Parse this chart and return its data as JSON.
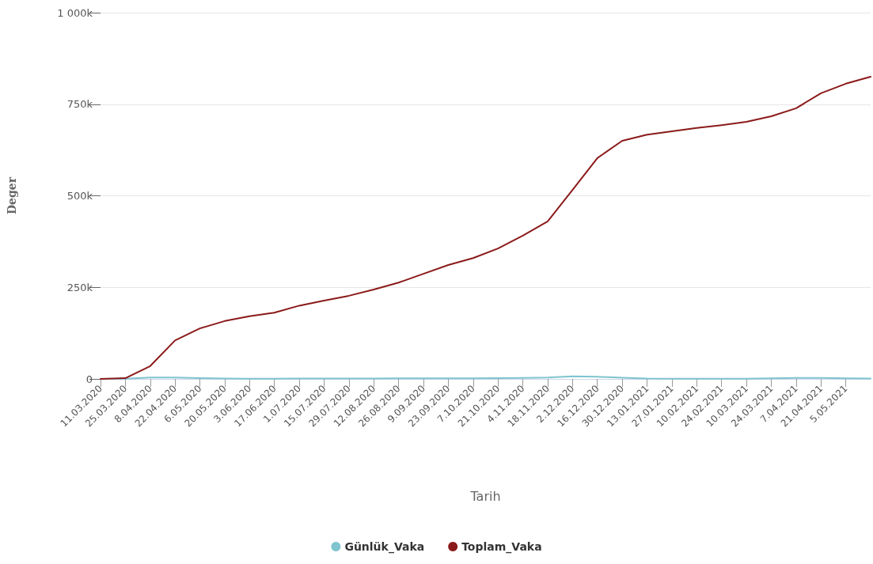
{
  "chart_data": {
    "type": "line",
    "xlabel": "Tarih",
    "ylabel": "Deger",
    "x": [
      "2020-03-11",
      "2020-03-25",
      "2020-04-08",
      "2020-04-22",
      "2020-05-06",
      "2020-05-20",
      "2020-06-03",
      "2020-06-17",
      "2020-07-01",
      "2020-07-15",
      "2020-07-29",
      "2020-08-12",
      "2020-08-26",
      "2020-09-09",
      "2020-09-23",
      "2020-10-07",
      "2020-10-21",
      "2020-11-04",
      "2020-11-18",
      "2020-12-02",
      "2020-12-16",
      "2020-12-30",
      "2021-01-13",
      "2021-01-27",
      "2021-02-10",
      "2021-02-24",
      "2021-03-10",
      "2021-03-24",
      "2021-04-07",
      "2021-04-21",
      "2021-05-05",
      "2021-05-19"
    ],
    "series": [
      {
        "name": "Günlük_Vaka",
        "color": "#7fc4cf",
        "values": [
          0,
          300,
          4000,
          4000,
          2000,
          1200,
          800,
          800,
          1200,
          1000,
          1000,
          1200,
          1500,
          1800,
          1600,
          1500,
          2000,
          2500,
          4000,
          7000,
          6000,
          3000,
          1000,
          700,
          600,
          600,
          800,
          1500,
          2500,
          2800,
          1500,
          1200
        ]
      },
      {
        "name": "Toplam_Vaka",
        "color": "#8b1a1a",
        "values": [
          0,
          2000,
          35000,
          105000,
          138000,
          158000,
          171000,
          181000,
          200000,
          214000,
          227000,
          244000,
          263000,
          287000,
          311000,
          330000,
          356000,
          391000,
          430000,
          516000,
          603000,
          650000,
          667000,
          676000,
          685000,
          693000,
          702000,
          717000,
          739000,
          780000,
          806000,
          825000
        ]
      }
    ],
    "xlim": [
      "2020-03-11",
      "2021-05-19"
    ],
    "xticks": [
      {
        "value": "2020-03-11",
        "label": "11.03.2020"
      },
      {
        "value": "2020-03-25",
        "label": "25.03.2020"
      },
      {
        "value": "2020-04-08",
        "label": "8.04.2020"
      },
      {
        "value": "2020-04-22",
        "label": "22.04.2020"
      },
      {
        "value": "2020-05-06",
        "label": "6.05.2020"
      },
      {
        "value": "2020-05-20",
        "label": "20.05.2020"
      },
      {
        "value": "2020-06-03",
        "label": "3.06.2020"
      },
      {
        "value": "2020-06-17",
        "label": "17.06.2020"
      },
      {
        "value": "2020-07-01",
        "label": "1.07.2020"
      },
      {
        "value": "2020-07-15",
        "label": "15.07.2020"
      },
      {
        "value": "2020-07-29",
        "label": "29.07.2020"
      },
      {
        "value": "2020-08-12",
        "label": "12.08.2020"
      },
      {
        "value": "2020-08-26",
        "label": "26.08.2020"
      },
      {
        "value": "2020-09-09",
        "label": "9.09.2020"
      },
      {
        "value": "2020-09-23",
        "label": "23.09.2020"
      },
      {
        "value": "2020-10-07",
        "label": "7.10.2020"
      },
      {
        "value": "2020-10-21",
        "label": "21.10.2020"
      },
      {
        "value": "2020-11-04",
        "label": "4.11.2020"
      },
      {
        "value": "2020-11-18",
        "label": "18.11.2020"
      },
      {
        "value": "2020-12-02",
        "label": "2.12.2020"
      },
      {
        "value": "2020-12-16",
        "label": "16.12.2020"
      },
      {
        "value": "2020-12-30",
        "label": "30.12.2020"
      },
      {
        "value": "2021-01-13",
        "label": "13.01.2021"
      },
      {
        "value": "2021-01-27",
        "label": "27.01.2021"
      },
      {
        "value": "2021-02-10",
        "label": "10.02.2021"
      },
      {
        "value": "2021-02-24",
        "label": "24.02.2021"
      },
      {
        "value": "2021-03-10",
        "label": "10.03.2021"
      },
      {
        "value": "2021-03-24",
        "label": "24.03.2021"
      },
      {
        "value": "2021-04-07",
        "label": "7.04.2021"
      },
      {
        "value": "2021-04-21",
        "label": "21.04.2021"
      },
      {
        "value": "2021-05-05",
        "label": "5.05.2021"
      }
    ],
    "ylim": [
      0,
      1000000
    ],
    "yticks": [
      {
        "value": 0,
        "label": "0"
      },
      {
        "value": 250000,
        "label": "250k"
      },
      {
        "value": 500000,
        "label": "500k"
      },
      {
        "value": 750000,
        "label": "750k"
      },
      {
        "value": 1000000,
        "label": "1 000k"
      }
    ],
    "grid": "y",
    "legend": "bottom",
    "marker": "none"
  }
}
